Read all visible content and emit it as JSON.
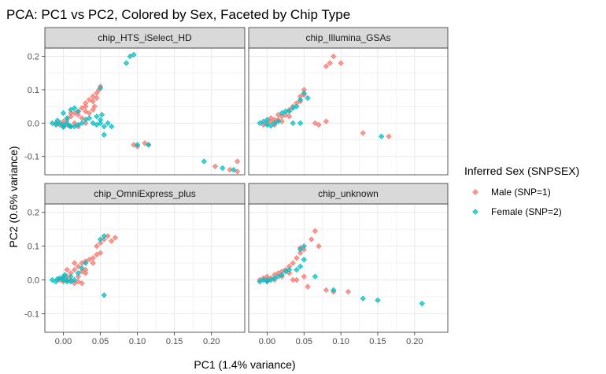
{
  "colors": {
    "male": "#F8766D",
    "female": "#00BFC4",
    "panel_bg": "#FFFFFF",
    "strip_bg": "#D9D9D9",
    "grid": "#EBEBEB",
    "border": "#333333"
  },
  "chart_data": {
    "type": "scatter",
    "title": "PCA: PC1 vs PC2, Colored by Sex, Faceted by Chip Type",
    "xlabel": "PC1 (1.4% variance)",
    "ylabel": "PC2 (0.6% variance)",
    "xlim": [
      -0.025,
      0.245
    ],
    "ylim": [
      -0.155,
      0.225
    ],
    "x_ticks": [
      0.0,
      0.05,
      0.1,
      0.15,
      0.2
    ],
    "x_tick_labels": [
      "0.00",
      "0.05",
      "0.10",
      "0.15",
      "0.20"
    ],
    "y_ticks": [
      -0.1,
      0.0,
      0.1,
      0.2
    ],
    "y_tick_labels": [
      "-0.1",
      "0.0",
      "0.1",
      "0.2"
    ],
    "grid": true,
    "legend": {
      "title": "Inferred Sex (SNPSEX)",
      "position": "right",
      "entries": [
        {
          "label": "Male (SNP=1)",
          "series": "male"
        },
        {
          "label": "Female (SNP=2)",
          "series": "female"
        }
      ]
    },
    "facets": [
      {
        "label": "chip_HTS_iSelect_HD",
        "series": [
          {
            "key": "male",
            "points": [
              [
                -0.01,
                0.0
              ],
              [
                -0.005,
                -0.005
              ],
              [
                0.0,
                0.005
              ],
              [
                0.005,
                0.01
              ],
              [
                0.01,
                0.02
              ],
              [
                0.015,
                0.03
              ],
              [
                0.02,
                0.035
              ],
              [
                0.025,
                0.045
              ],
              [
                0.03,
                0.06
              ],
              [
                0.035,
                0.07
              ],
              [
                0.04,
                0.08
              ],
              [
                0.045,
                0.09
              ],
              [
                0.048,
                0.1
              ],
              [
                0.05,
                0.11
              ],
              [
                0.045,
                0.075
              ],
              [
                0.04,
                0.065
              ],
              [
                0.03,
                0.05
              ],
              [
                0.02,
                0.025
              ],
              [
                0.015,
                0.0
              ],
              [
                0.01,
                -0.01
              ],
              [
                0.005,
                -0.005
              ],
              [
                0.02,
                -0.01
              ],
              [
                0.03,
                0.0
              ],
              [
                0.035,
                0.03
              ],
              [
                0.04,
                0.04
              ],
              [
                0.025,
                0.015
              ],
              [
                0.0,
                -0.01
              ],
              [
                0.095,
                -0.065
              ],
              [
                0.1,
                -0.07
              ],
              [
                0.11,
                -0.06
              ],
              [
                0.115,
                -0.065
              ],
              [
                0.205,
                -0.13
              ],
              [
                0.225,
                -0.14
              ],
              [
                0.235,
                -0.115
              ],
              [
                0.235,
                -0.145
              ],
              [
                0.01,
                0.03
              ],
              [
                0.03,
                0.035
              ],
              [
                0.042,
                0.05
              ]
            ]
          },
          {
            "key": "female",
            "points": [
              [
                -0.015,
                0.0
              ],
              [
                -0.01,
                -0.005
              ],
              [
                -0.005,
                0.0
              ],
              [
                0.0,
                -0.005
              ],
              [
                0.005,
                0.0
              ],
              [
                0.01,
                -0.01
              ],
              [
                0.015,
                -0.01
              ],
              [
                0.02,
                -0.005
              ],
              [
                0.025,
                0.0
              ],
              [
                0.03,
                0.01
              ],
              [
                0.035,
                0.015
              ],
              [
                0.04,
                0.0
              ],
              [
                0.045,
                -0.005
              ],
              [
                0.05,
                0.01
              ],
              [
                0.05,
                0.0
              ],
              [
                0.055,
                -0.01
              ],
              [
                0.06,
                0.0
              ],
              [
                0.0,
                0.03
              ],
              [
                0.01,
                0.04
              ],
              [
                0.015,
                0.045
              ],
              [
                0.02,
                0.035
              ],
              [
                0.005,
                0.015
              ],
              [
                -0.008,
                0.008
              ],
              [
                0.045,
                0.02
              ],
              [
                0.052,
                0.025
              ],
              [
                0.05,
                0.105
              ],
              [
                0.065,
                -0.01
              ],
              [
                0.055,
                -0.035
              ],
              [
                0.085,
                0.18
              ],
              [
                0.09,
                0.2
              ],
              [
                0.095,
                0.205
              ],
              [
                0.1,
                -0.065
              ],
              [
                0.115,
                -0.065
              ],
              [
                0.19,
                -0.115
              ],
              [
                0.215,
                -0.135
              ],
              [
                0.23,
                -0.14
              ],
              [
                0.0,
                -0.012
              ],
              [
                0.008,
                -0.008
              ]
            ]
          }
        ]
      },
      {
        "label": "chip_Illumina_GSAs",
        "series": [
          {
            "key": "male",
            "points": [
              [
                -0.005,
                -0.005
              ],
              [
                0.0,
                0.0
              ],
              [
                0.005,
                0.005
              ],
              [
                0.01,
                0.01
              ],
              [
                0.015,
                0.01
              ],
              [
                0.02,
                0.02
              ],
              [
                0.025,
                0.025
              ],
              [
                0.03,
                0.04
              ],
              [
                0.035,
                0.05
              ],
              [
                0.04,
                0.06
              ],
              [
                0.045,
                0.065
              ],
              [
                0.045,
                0.08
              ],
              [
                0.05,
                0.085
              ],
              [
                0.05,
                0.1
              ],
              [
                0.08,
                0.17
              ],
              [
                0.085,
                0.18
              ],
              [
                0.09,
                0.2
              ],
              [
                0.1,
                0.18
              ],
              [
                0.065,
                0.0
              ],
              [
                0.07,
                -0.005
              ],
              [
                0.08,
                0.005
              ],
              [
                0.13,
                -0.03
              ],
              [
                0.165,
                -0.04
              ],
              [
                0.02,
                0.005
              ],
              [
                0.03,
                0.02
              ],
              [
                0.005,
                0.015
              ],
              [
                0.015,
                0.025
              ],
              [
                0.01,
                -0.005
              ]
            ]
          },
          {
            "key": "female",
            "points": [
              [
                -0.01,
                0.0
              ],
              [
                -0.005,
                0.005
              ],
              [
                0.0,
                -0.005
              ],
              [
                0.005,
                -0.008
              ],
              [
                0.01,
                0.0
              ],
              [
                0.015,
                0.005
              ],
              [
                0.02,
                0.03
              ],
              [
                0.025,
                0.035
              ],
              [
                0.03,
                0.035
              ],
              [
                0.035,
                0.045
              ],
              [
                0.04,
                0.05
              ],
              [
                0.045,
                0.07
              ],
              [
                0.05,
                0.09
              ],
              [
                0.055,
                0.075
              ],
              [
                0.035,
                0.0
              ],
              [
                0.045,
                0.0
              ],
              [
                0.155,
                -0.04
              ],
              [
                0.0,
                0.01
              ]
            ]
          }
        ]
      },
      {
        "label": "chip_OmniExpress_plus",
        "series": [
          {
            "key": "male",
            "points": [
              [
                -0.005,
                0.0
              ],
              [
                0.0,
                0.005
              ],
              [
                0.005,
                0.01
              ],
              [
                0.01,
                0.02
              ],
              [
                0.015,
                0.03
              ],
              [
                0.02,
                0.04
              ],
              [
                0.025,
                0.05
              ],
              [
                0.03,
                0.055
              ],
              [
                0.035,
                0.06
              ],
              [
                0.04,
                0.065
              ],
              [
                0.045,
                0.075
              ],
              [
                0.05,
                0.08
              ],
              [
                0.045,
                0.1
              ],
              [
                0.05,
                0.11
              ],
              [
                0.055,
                0.12
              ],
              [
                0.06,
                0.13
              ],
              [
                0.065,
                0.115
              ],
              [
                0.07,
                0.125
              ],
              [
                0.01,
                0.0
              ],
              [
                0.02,
                0.01
              ],
              [
                0.02,
                -0.005
              ],
              [
                0.025,
                -0.01
              ],
              [
                0.015,
                -0.01
              ],
              [
                0.03,
                0.02
              ],
              [
                0.04,
                0.05
              ],
              [
                0.03,
                0.03
              ],
              [
                0.025,
                0.025
              ],
              [
                0.0,
                -0.005
              ],
              [
                0.005,
                0.03
              ],
              [
                0.015,
                0.05
              ]
            ]
          },
          {
            "key": "female",
            "points": [
              [
                -0.015,
                0.0
              ],
              [
                -0.01,
                -0.005
              ],
              [
                -0.005,
                0.005
              ],
              [
                0.0,
                0.0
              ],
              [
                0.005,
                0.0
              ],
              [
                0.01,
                0.01
              ],
              [
                0.0,
                0.01
              ],
              [
                0.005,
                -0.005
              ],
              [
                -0.008,
                0.003
              ],
              [
                0.01,
                -0.005
              ],
              [
                0.015,
                0.0
              ],
              [
                0.02,
                0.02
              ],
              [
                0.025,
                0.035
              ],
              [
                0.03,
                0.05
              ],
              [
                0.05,
                0.12
              ],
              [
                0.055,
                0.13
              ],
              [
                0.055,
                -0.045
              ],
              [
                0.002,
                0.015
              ]
            ]
          }
        ]
      },
      {
        "label": "chip_unknown",
        "series": [
          {
            "key": "male",
            "points": [
              [
                -0.01,
                0.0
              ],
              [
                -0.005,
                0.005
              ],
              [
                0.0,
                0.01
              ],
              [
                0.005,
                0.005
              ],
              [
                0.01,
                0.015
              ],
              [
                0.015,
                0.02
              ],
              [
                0.02,
                0.025
              ],
              [
                0.025,
                0.03
              ],
              [
                0.03,
                0.04
              ],
              [
                0.035,
                0.05
              ],
              [
                0.04,
                0.065
              ],
              [
                0.045,
                0.08
              ],
              [
                0.045,
                0.095
              ],
              [
                0.05,
                0.09
              ],
              [
                0.06,
                0.12
              ],
              [
                0.065,
                0.145
              ],
              [
                0.07,
                0.1
              ],
              [
                0.04,
                0.0
              ],
              [
                0.05,
                0.01
              ],
              [
                0.055,
                -0.02
              ],
              [
                0.08,
                -0.03
              ],
              [
                0.09,
                -0.035
              ],
              [
                0.11,
                -0.035
              ],
              [
                0.02,
                0.01
              ],
              [
                0.03,
                0.02
              ],
              [
                0.0,
                -0.005
              ],
              [
                0.01,
                0.0
              ],
              [
                0.035,
                0.0
              ]
            ]
          },
          {
            "key": "female",
            "points": [
              [
                -0.01,
                -0.005
              ],
              [
                -0.005,
                0.0
              ],
              [
                0.0,
                0.0
              ],
              [
                0.005,
                0.0
              ],
              [
                0.01,
                0.005
              ],
              [
                0.015,
                0.01
              ],
              [
                0.02,
                0.015
              ],
              [
                0.025,
                0.025
              ],
              [
                0.03,
                0.03
              ],
              [
                0.04,
                0.03
              ],
              [
                0.045,
                0.04
              ],
              [
                0.05,
                0.06
              ],
              [
                0.045,
                0.09
              ],
              [
                0.05,
                0.1
              ],
              [
                0.065,
                0.01
              ],
              [
                0.09,
                -0.03
              ],
              [
                0.13,
                -0.055
              ],
              [
                0.15,
                -0.06
              ],
              [
                0.21,
                -0.07
              ],
              [
                0.0,
                -0.005
              ]
            ]
          }
        ]
      }
    ]
  }
}
